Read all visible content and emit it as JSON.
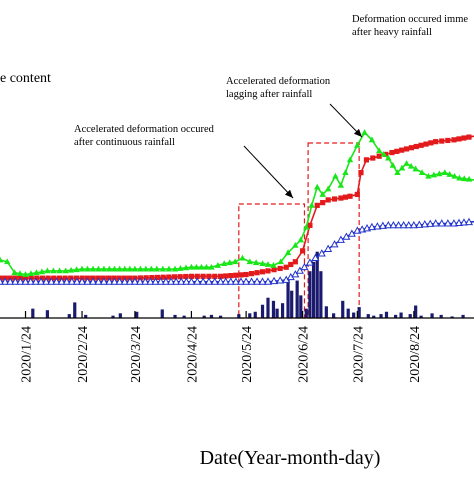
{
  "chart_data": {
    "type": "line",
    "xlabel": "Date(Year-month-day)",
    "x_ticks": [
      "2020/1/24",
      "2020/2/24",
      "2020/3/24",
      "2020/4/24",
      "2020/5/24",
      "2020/6/24",
      "2020/7/24",
      "2020/8/24"
    ],
    "x_range": [
      "2020-01-10",
      "2020-09-26"
    ],
    "legend_fragment": "e content",
    "annotations": [
      {
        "id": "a1",
        "lines": [
          "Accelerated deformation occured",
          "after continuous rainfall"
        ]
      },
      {
        "id": "a2",
        "lines": [
          "Accelerated deformation",
          "lagging after rainfall"
        ]
      },
      {
        "id": "a3",
        "lines": [
          "Deformation occured imme",
          "after heavy rainfall"
        ]
      }
    ],
    "highlight_windows": [
      {
        "start": "2020-05-20",
        "end": "2020-06-25"
      },
      {
        "start": "2020-06-27",
        "end": "2020-07-25"
      }
    ],
    "series": [
      {
        "kind": "line",
        "marker": "square",
        "color": "#e31a1c",
        "points": [
          [
            "2020-01-10",
            12
          ],
          [
            "2020-01-24",
            12
          ],
          [
            "2020-02-24",
            12
          ],
          [
            "2020-03-24",
            12
          ],
          [
            "2020-04-24",
            13
          ],
          [
            "2020-05-10",
            13
          ],
          [
            "2020-05-24",
            14
          ],
          [
            "2020-06-05",
            16
          ],
          [
            "2020-06-15",
            18
          ],
          [
            "2020-06-20",
            21
          ],
          [
            "2020-06-24",
            27
          ],
          [
            "2020-06-28",
            41
          ],
          [
            "2020-07-02",
            52
          ],
          [
            "2020-07-08",
            55
          ],
          [
            "2020-07-15",
            56
          ],
          [
            "2020-07-20",
            57
          ],
          [
            "2020-07-24",
            58
          ],
          [
            "2020-07-26",
            70
          ],
          [
            "2020-07-29",
            77
          ],
          [
            "2020-08-05",
            79
          ],
          [
            "2020-08-12",
            81
          ],
          [
            "2020-08-20",
            83
          ],
          [
            "2020-08-28",
            85
          ],
          [
            "2020-09-05",
            87
          ],
          [
            "2020-09-15",
            88
          ],
          [
            "2020-09-26",
            90
          ]
        ]
      },
      {
        "kind": "line",
        "marker": "triangle",
        "color": "#19e619",
        "points": [
          [
            "2020-01-10",
            22
          ],
          [
            "2020-01-14",
            21
          ],
          [
            "2020-01-18",
            15
          ],
          [
            "2020-01-24",
            14
          ],
          [
            "2020-02-05",
            16
          ],
          [
            "2020-02-15",
            16
          ],
          [
            "2020-02-24",
            17
          ],
          [
            "2020-03-10",
            17
          ],
          [
            "2020-03-24",
            17
          ],
          [
            "2020-04-05",
            17
          ],
          [
            "2020-04-15",
            17
          ],
          [
            "2020-04-24",
            18
          ],
          [
            "2020-05-05",
            18
          ],
          [
            "2020-05-12",
            20
          ],
          [
            "2020-05-18",
            21
          ],
          [
            "2020-05-22",
            23
          ],
          [
            "2020-05-26",
            21
          ],
          [
            "2020-06-02",
            20
          ],
          [
            "2020-06-08",
            19
          ],
          [
            "2020-06-12",
            21
          ],
          [
            "2020-06-16",
            26
          ],
          [
            "2020-06-20",
            30
          ],
          [
            "2020-06-23",
            33
          ],
          [
            "2020-06-26",
            40
          ],
          [
            "2020-06-29",
            52
          ],
          [
            "2020-07-02",
            62
          ],
          [
            "2020-07-05",
            58
          ],
          [
            "2020-07-08",
            61
          ],
          [
            "2020-07-12",
            68
          ],
          [
            "2020-07-15",
            63
          ],
          [
            "2020-07-20",
            77
          ],
          [
            "2020-07-24",
            85
          ],
          [
            "2020-07-28",
            92
          ],
          [
            "2020-08-01",
            88
          ],
          [
            "2020-08-05",
            82
          ],
          [
            "2020-08-10",
            78
          ],
          [
            "2020-08-15",
            70
          ],
          [
            "2020-08-20",
            75
          ],
          [
            "2020-08-25",
            72
          ],
          [
            "2020-09-01",
            68
          ],
          [
            "2020-09-10",
            70
          ],
          [
            "2020-09-18",
            67
          ],
          [
            "2020-09-26",
            66
          ]
        ]
      },
      {
        "kind": "line",
        "marker": "open-triangle",
        "color": "#2233cc",
        "points": [
          [
            "2020-01-10",
            10
          ],
          [
            "2020-01-24",
            10
          ],
          [
            "2020-02-10",
            10
          ],
          [
            "2020-02-24",
            10
          ],
          [
            "2020-03-10",
            10
          ],
          [
            "2020-03-24",
            10
          ],
          [
            "2020-04-10",
            10
          ],
          [
            "2020-04-24",
            10
          ],
          [
            "2020-05-10",
            10
          ],
          [
            "2020-05-24",
            10
          ],
          [
            "2020-06-05",
            10
          ],
          [
            "2020-06-15",
            11
          ],
          [
            "2020-06-20",
            14
          ],
          [
            "2020-06-25",
            18
          ],
          [
            "2020-07-01",
            23
          ],
          [
            "2020-07-08",
            28
          ],
          [
            "2020-07-15",
            33
          ],
          [
            "2020-07-24",
            38
          ],
          [
            "2020-08-01",
            40
          ],
          [
            "2020-08-10",
            41
          ],
          [
            "2020-08-24",
            41
          ],
          [
            "2020-09-05",
            42
          ],
          [
            "2020-09-15",
            42
          ],
          [
            "2020-09-26",
            43
          ]
        ]
      },
      {
        "kind": "bar",
        "color": "#1a1a6e",
        "points": [
          [
            "2020-01-28",
            12
          ],
          [
            "2020-02-05",
            10
          ],
          [
            "2020-02-17",
            5
          ],
          [
            "2020-02-20",
            20
          ],
          [
            "2020-02-26",
            4
          ],
          [
            "2020-03-12",
            3
          ],
          [
            "2020-03-16",
            6
          ],
          [
            "2020-03-25",
            8
          ],
          [
            "2020-04-08",
            11
          ],
          [
            "2020-04-15",
            4
          ],
          [
            "2020-04-20",
            3
          ],
          [
            "2020-05-01",
            3
          ],
          [
            "2020-05-05",
            4
          ],
          [
            "2020-05-10",
            3
          ],
          [
            "2020-05-20",
            5
          ],
          [
            "2020-05-26",
            6
          ],
          [
            "2020-05-29",
            8
          ],
          [
            "2020-06-02",
            17
          ],
          [
            "2020-06-05",
            26
          ],
          [
            "2020-06-08",
            22
          ],
          [
            "2020-06-10",
            12
          ],
          [
            "2020-06-13",
            19
          ],
          [
            "2020-06-16",
            50
          ],
          [
            "2020-06-18",
            35
          ],
          [
            "2020-06-21",
            48
          ],
          [
            "2020-06-23",
            29
          ],
          [
            "2020-06-26",
            12
          ],
          [
            "2020-06-28",
            60
          ],
          [
            "2020-06-30",
            72
          ],
          [
            "2020-07-02",
            85
          ],
          [
            "2020-07-04",
            60
          ],
          [
            "2020-07-07",
            15
          ],
          [
            "2020-07-11",
            6
          ],
          [
            "2020-07-16",
            22
          ],
          [
            "2020-07-19",
            12
          ],
          [
            "2020-07-22",
            7
          ],
          [
            "2020-07-25",
            14
          ],
          [
            "2020-07-30",
            5
          ],
          [
            "2020-08-02",
            3
          ],
          [
            "2020-08-06",
            5
          ],
          [
            "2020-08-09",
            8
          ],
          [
            "2020-08-14",
            4
          ],
          [
            "2020-08-17",
            7
          ],
          [
            "2020-08-22",
            5
          ],
          [
            "2020-08-25",
            16
          ],
          [
            "2020-08-28",
            3
          ],
          [
            "2020-09-03",
            6
          ],
          [
            "2020-09-08",
            4
          ],
          [
            "2020-09-14",
            2
          ],
          [
            "2020-09-20",
            4
          ]
        ]
      }
    ]
  }
}
